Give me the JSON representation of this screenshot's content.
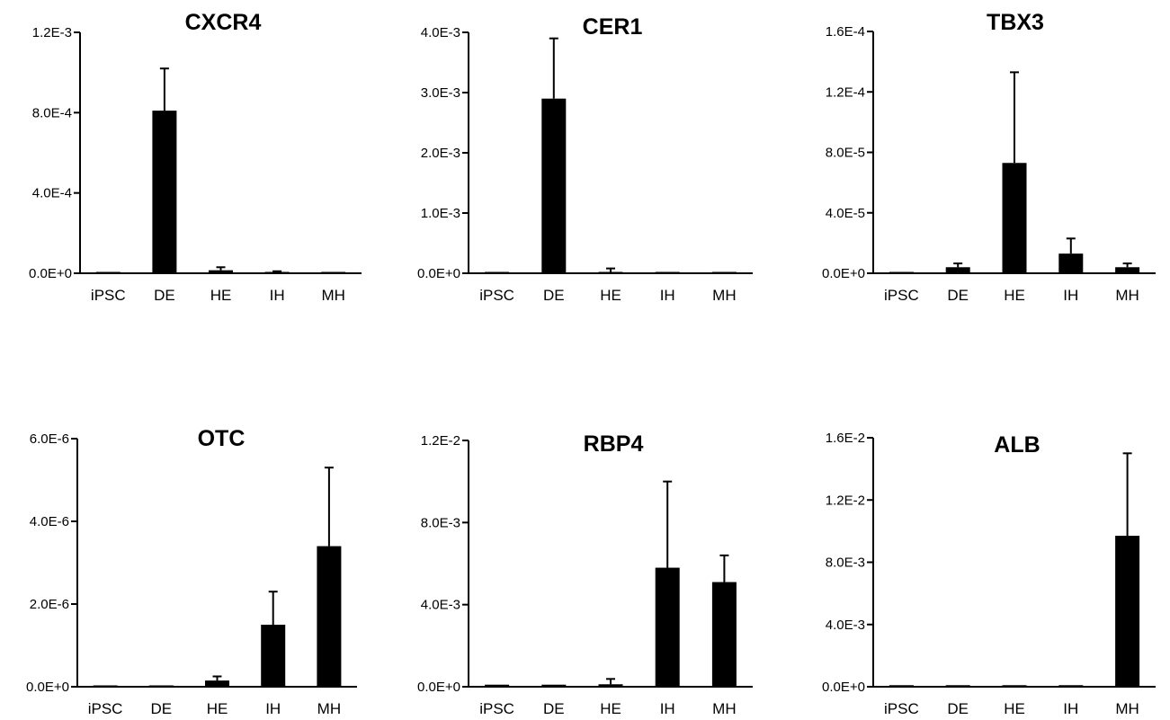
{
  "chart_data": [
    {
      "type": "bar",
      "title": "CXCR4",
      "categories": [
        "iPSC",
        "DE",
        "HE",
        "IH",
        "MH"
      ],
      "values": [
        2e-06,
        0.00081,
        1.5e-05,
        3e-06,
        2e-06
      ],
      "errors": [
        0,
        0.00021,
        1.5e-05,
        7e-06,
        0
      ],
      "ylim": [
        0,
        0.0012
      ],
      "yticks": [
        0,
        0.0004,
        0.0008,
        0.0012
      ],
      "ytick_labels": [
        "0.0E+0",
        "4.0E-4",
        "8.0E-4",
        "1.2E-3"
      ]
    },
    {
      "type": "bar",
      "title": "CER1",
      "categories": [
        "iPSC",
        "DE",
        "HE",
        "IH",
        "MH"
      ],
      "values": [
        1e-05,
        0.0029,
        1e-05,
        1e-05,
        1e-05
      ],
      "errors": [
        0,
        0.001,
        7e-05,
        0,
        0
      ],
      "ylim": [
        0,
        0.004
      ],
      "yticks": [
        0,
        0.001,
        0.002,
        0.003,
        0.004
      ],
      "ytick_labels": [
        "0.0E+0",
        "1.0E-3",
        "2.0E-3",
        "3.0E-3",
        "4.0E-3"
      ]
    },
    {
      "type": "bar",
      "title": "TBX3",
      "categories": [
        "iPSC",
        "DE",
        "HE",
        "IH",
        "MH"
      ],
      "values": [
        2e-07,
        4e-06,
        7.3e-05,
        1.3e-05,
        4e-06
      ],
      "errors": [
        0,
        2.5e-06,
        6e-05,
        1e-05,
        2.5e-06
      ],
      "ylim": [
        0,
        0.00016
      ],
      "yticks": [
        0,
        4e-05,
        8e-05,
        0.00012,
        0.00016
      ],
      "ytick_labels": [
        "0.0E+0",
        "4.0E-5",
        "8.0E-5",
        "1.2E-4",
        "1.6E-4"
      ]
    },
    {
      "type": "bar",
      "title": "OTC",
      "categories": [
        "iPSC",
        "DE",
        "HE",
        "IH",
        "MH"
      ],
      "values": [
        5e-09,
        5e-09,
        1.5e-07,
        1.5e-06,
        3.4e-06
      ],
      "errors": [
        0,
        0,
        1e-07,
        8e-07,
        1.9e-06
      ],
      "ylim": [
        0,
        6e-06
      ],
      "yticks": [
        0,
        2e-06,
        4e-06,
        6e-06
      ],
      "ytick_labels": [
        "0.0E+0",
        "2.0E-6",
        "4.0E-6",
        "6.0E-6"
      ]
    },
    {
      "type": "bar",
      "title": "RBP4",
      "categories": [
        "iPSC",
        "DE",
        "HE",
        "IH",
        "MH"
      ],
      "values": [
        0.0001,
        0.0001,
        0.00012,
        0.0058,
        0.0051
      ],
      "errors": [
        0,
        0,
        0.00026,
        0.0042,
        0.0013
      ],
      "ylim": [
        0,
        0.012
      ],
      "yticks": [
        0,
        0.004,
        0.008,
        0.012
      ],
      "ytick_labels": [
        "0.0E+0",
        "4.0E-3",
        "8.0E-3",
        "1.2E-2"
      ]
    },
    {
      "type": "bar",
      "title": "ALB",
      "categories": [
        "iPSC",
        "DE",
        "HE",
        "IH",
        "MH"
      ],
      "values": [
        0.0001,
        0.0001,
        0.0001,
        0.0001,
        0.0097
      ],
      "errors": [
        0,
        0,
        0,
        0,
        0.0053
      ],
      "ylim": [
        0,
        0.016
      ],
      "yticks": [
        0,
        0.004,
        0.008,
        0.012,
        0.016
      ],
      "ytick_labels": [
        "0.0E+0",
        "4.0E-3",
        "8.0E-3",
        "1.2E-2",
        "1.6E-2"
      ]
    }
  ],
  "colors": {
    "bar": "#000000",
    "axis": "#000000"
  }
}
